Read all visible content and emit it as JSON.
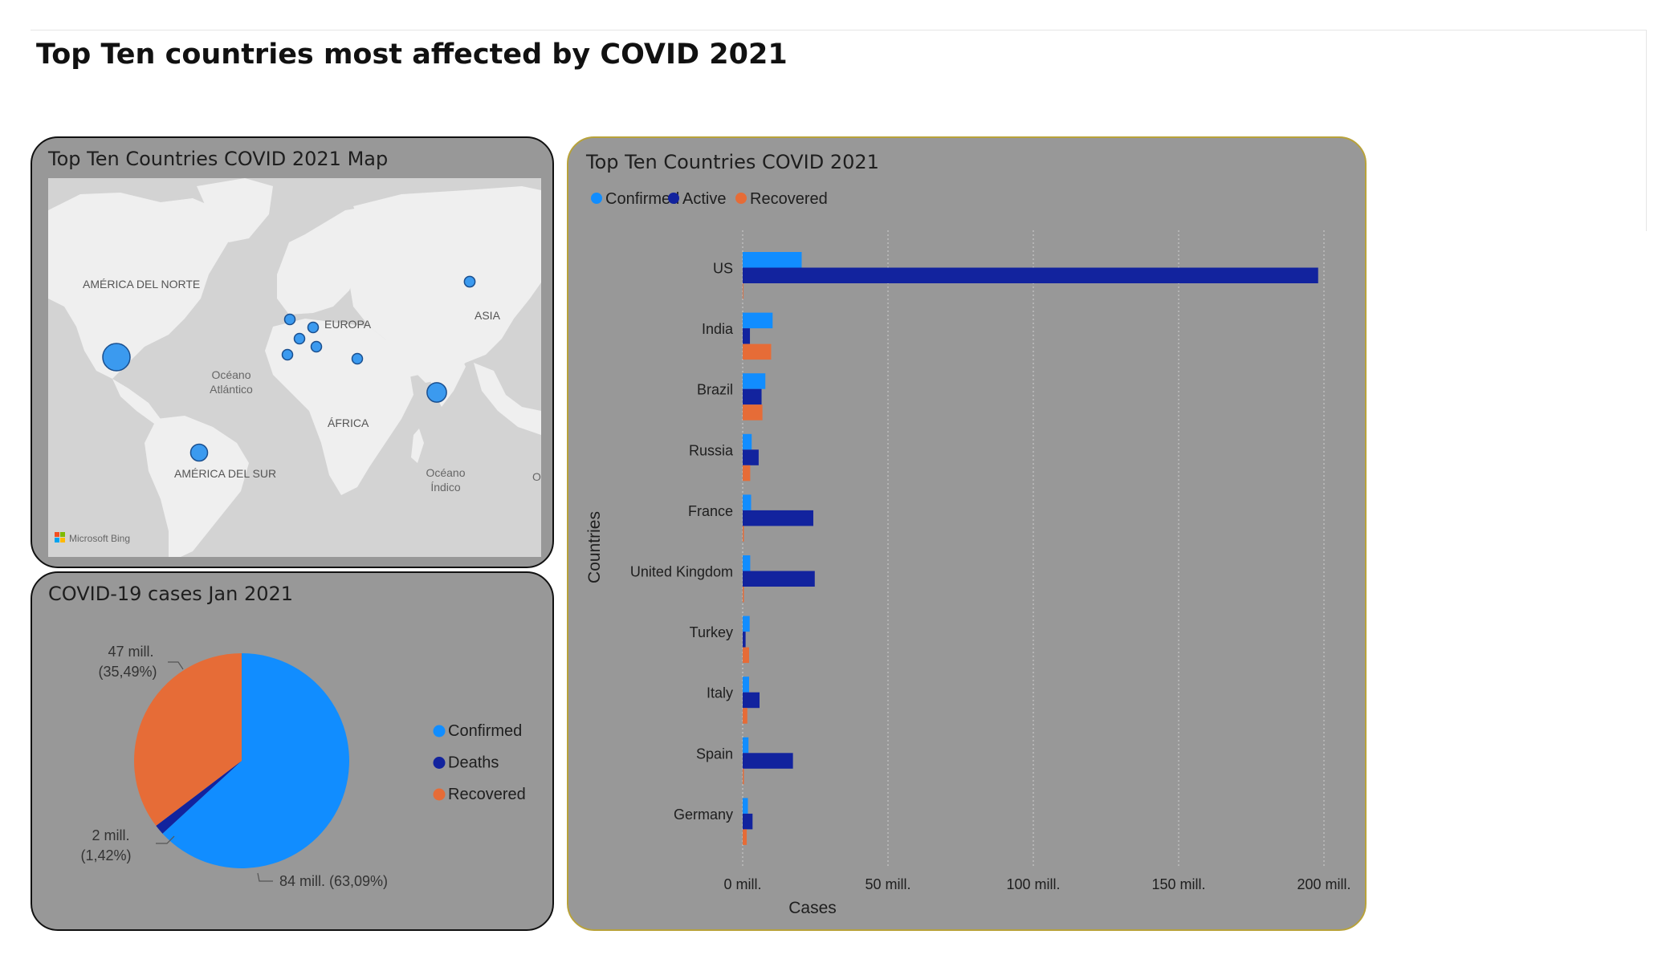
{
  "page": {
    "title": "Top Ten countries most affected by COVID 2021"
  },
  "map": {
    "title": "Top Ten Countries COVID 2021 Map",
    "attribution": "Microsoft Bing",
    "labels": {
      "north_america": "AMÉRICA DEL NORTE",
      "south_america": "AMÉRICA DEL SUR",
      "europe": "EUROPA",
      "asia": "ASIA",
      "africa": "ÁFRICA",
      "atlantic_1": "Océano",
      "atlantic_2": "Atlántico",
      "indian_1": "Océano",
      "indian_2": "Índico",
      "edge": "O"
    },
    "colors": {
      "bubble": "#3b9aef",
      "bubble_stroke": "#1a4f8f",
      "land": "#efefef",
      "water": "#d3d3d3"
    }
  },
  "pie": {
    "title": "COVID-19 cases Jan 2021",
    "legend": [
      "Confirmed",
      "Deaths",
      "Recovered"
    ],
    "labels": {
      "recovered_1": "47 mill.",
      "recovered_2": "(35,49%)",
      "deaths_1": "2 mill.",
      "deaths_2": "(1,42%)",
      "confirmed": "84 mill. (63,09%)"
    }
  },
  "bar": {
    "title": "Top Ten Countries COVID 2021",
    "legend": [
      "Confirmed",
      "Active",
      "Recovered"
    ],
    "ylabel": "Countries",
    "xlabel": "Cases",
    "ticks": [
      "0 mill.",
      "50 mill.",
      "100 mill.",
      "150 mill.",
      "200 mill."
    ]
  },
  "colors": {
    "confirmed": "#118dff",
    "active": "#12239e",
    "deaths": "#12239e",
    "recovered": "#e66c37"
  },
  "chart_data": [
    {
      "type": "bar",
      "title": "Top Ten Countries COVID 2021",
      "orientation": "horizontal",
      "categories": [
        "US",
        "India",
        "Brazil",
        "Russia",
        "France",
        "United Kingdom",
        "Turkey",
        "Italy",
        "Spain",
        "Germany"
      ],
      "series": [
        {
          "name": "Confirmed",
          "values": [
            20.3,
            10.3,
            7.8,
            3.1,
            2.9,
            2.6,
            2.4,
            2.2,
            2.0,
            1.8
          ]
        },
        {
          "name": "Active",
          "values": [
            198,
            2.5,
            6.5,
            5.5,
            24.3,
            24.8,
            1.0,
            5.8,
            17.3,
            3.4
          ]
        },
        {
          "name": "Recovered",
          "values": [
            0,
            9.8,
            6.8,
            2.6,
            0.2,
            0.1,
            2.2,
            1.6,
            0.1,
            1.4
          ]
        }
      ],
      "xlabel": "Cases",
      "ylabel": "Countries",
      "xlim": [
        0,
        200
      ],
      "x_unit": "mill.",
      "grid": "vertical",
      "legend_position": "top-left"
    },
    {
      "type": "pie",
      "title": "COVID-19 cases Jan 2021",
      "categories": [
        "Confirmed",
        "Deaths",
        "Recovered"
      ],
      "values": [
        84,
        2,
        47
      ],
      "percentages": [
        63.09,
        1.42,
        35.49
      ],
      "unit": "mill.",
      "legend_position": "right"
    },
    {
      "type": "map",
      "title": "Top Ten Countries COVID 2021 Map",
      "points": [
        {
          "location": "US",
          "value": 20.3
        },
        {
          "location": "Brazil",
          "value": 7.8
        },
        {
          "location": "India",
          "value": 10.3
        },
        {
          "location": "Russia",
          "value": 3.1
        },
        {
          "location": "United Kingdom",
          "value": 2.6
        },
        {
          "location": "Germany",
          "value": 1.8
        },
        {
          "location": "France",
          "value": 2.9
        },
        {
          "location": "Spain",
          "value": 2.0
        },
        {
          "location": "Italy",
          "value": 2.2
        },
        {
          "location": "Turkey",
          "value": 2.4
        }
      ]
    }
  ]
}
